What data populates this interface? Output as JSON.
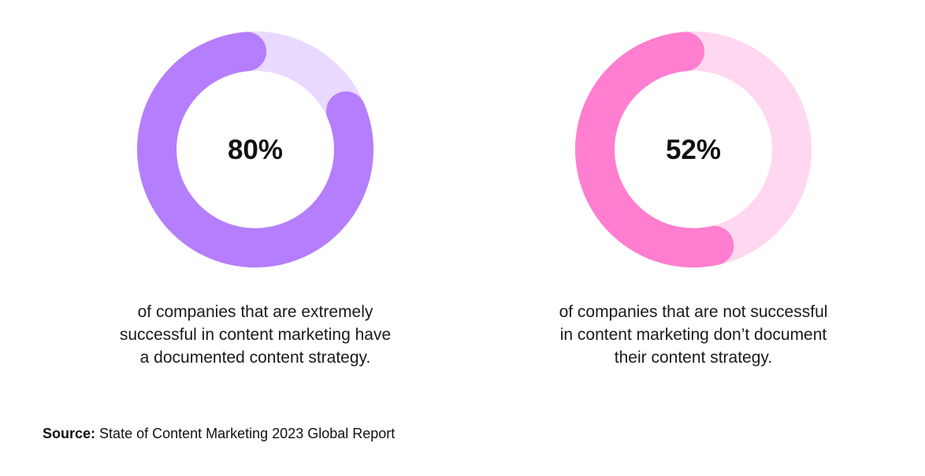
{
  "chart_data": [
    {
      "type": "pie",
      "style": "donut",
      "value": 80,
      "remainder": 20,
      "label": "80%",
      "colors": {
        "filled": "#b57efc",
        "track": "#ead9ff"
      },
      "caption": [
        "of companies that are extremely",
        "successful in content marketing have",
        "a documented content strategy."
      ]
    },
    {
      "type": "pie",
      "style": "donut",
      "value": 52,
      "remainder": 48,
      "label": "52%",
      "colors": {
        "filled": "#ff7ecf",
        "track": "#ffd7f0"
      },
      "caption": [
        "of companies that are not successful",
        "in content marketing don’t document",
        "their content strategy."
      ]
    }
  ],
  "source": {
    "label": "Source:",
    "text": "State of Content Marketing 2023 Global Report"
  }
}
